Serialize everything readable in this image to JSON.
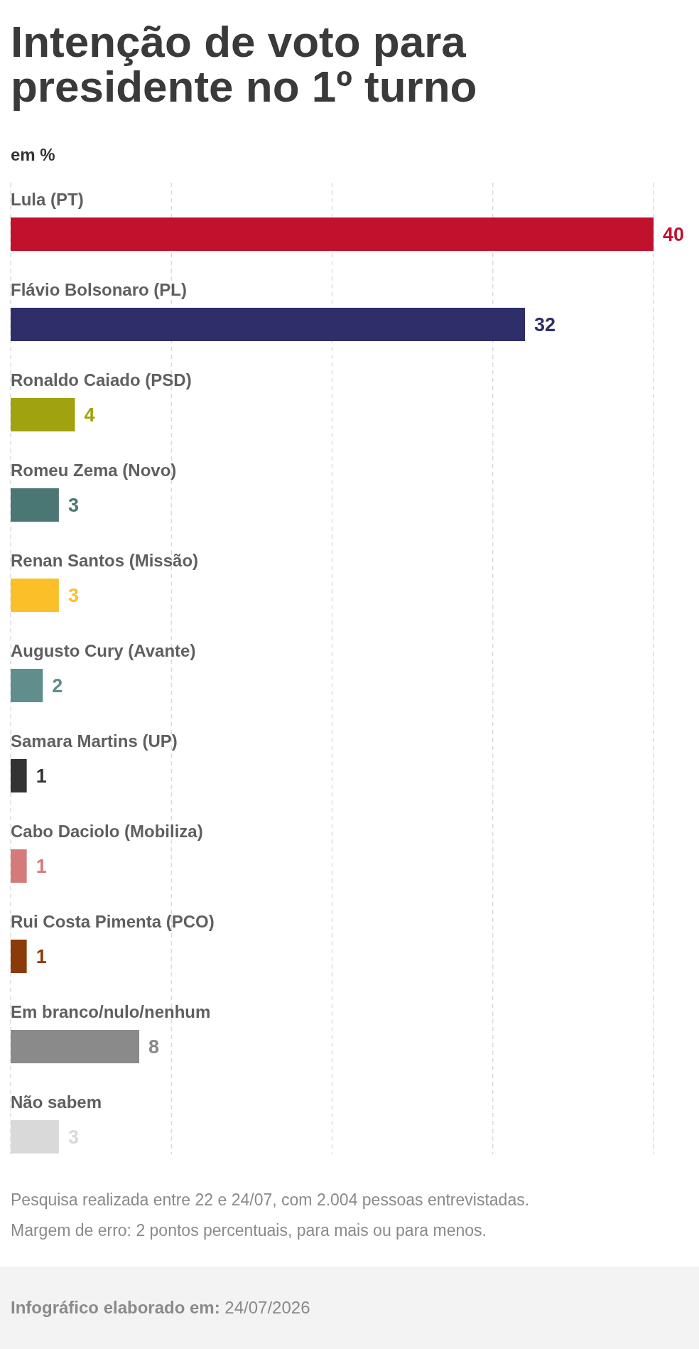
{
  "chart_data": {
    "type": "bar",
    "orientation": "horizontal",
    "title": "Intenção de voto para presidente no 1º turno",
    "subtitle": "em %",
    "categories": [
      "Lula (PT)",
      "Flávio Bolsonaro (PL)",
      "Ronaldo Caiado (PSD)",
      "Romeu Zema (Novo)",
      "Renan Santos (Missão)",
      "Augusto Cury (Avante)",
      "Samara Martins (UP)",
      "Cabo Daciolo (Mobiliza)",
      "Rui Costa Pimenta (PCO)",
      "Em branco/nulo/nenhum",
      "Não sabem"
    ],
    "values": [
      40,
      32,
      4,
      3,
      3,
      2,
      1,
      1,
      1,
      8,
      3
    ],
    "colors": [
      "#c0112d",
      "#2e2e6a",
      "#a0a20f",
      "#4a7674",
      "#fbbf2a",
      "#5f8e8c",
      "#333333",
      "#d47a7a",
      "#8b3a0b",
      "#8a8a8a",
      "#d9d9d9"
    ],
    "xlim": [
      0,
      40
    ],
    "xticks": [
      {
        "value": 0,
        "label": null
      },
      {
        "value": 10,
        "label": null
      },
      {
        "value": 20,
        "label": null
      },
      {
        "value": 30,
        "label": null
      },
      {
        "value": 40,
        "label": null
      }
    ],
    "grid": "x",
    "tick_labels": "y",
    "data_labels": true,
    "annotations": [
      "Pesquisa realizada entre 22 e 24/07, com 2.004 pessoas entrevistadas.",
      "Margem de erro: 2 pontos percentuais, para mais ou para menos.",
      "Infográfico elaborado em: 24/07/2026"
    ]
  }
}
